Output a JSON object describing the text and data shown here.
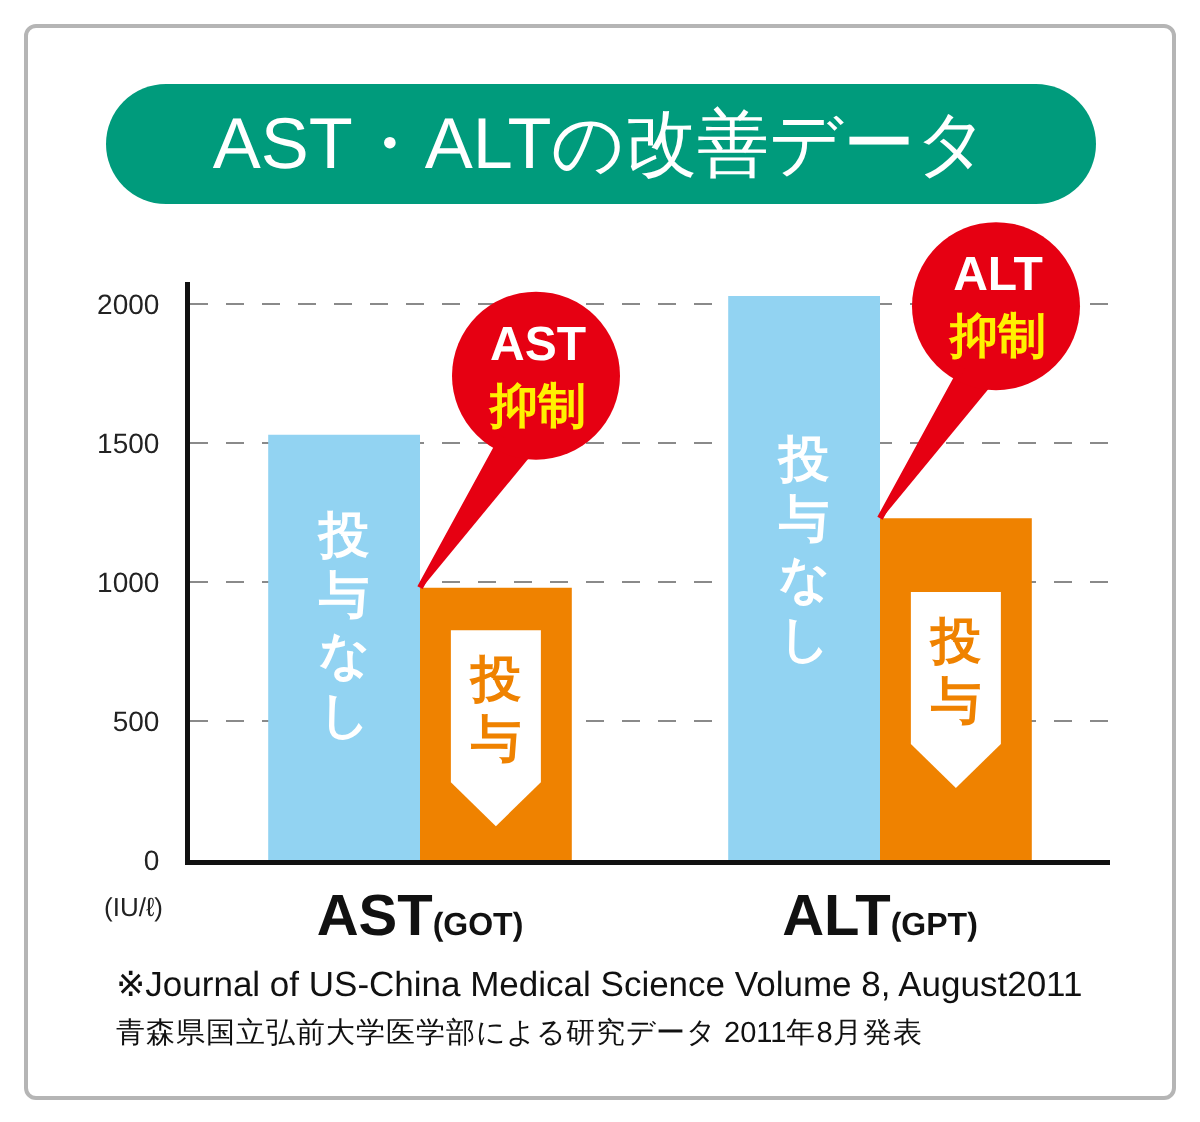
{
  "chart_data": {
    "type": "bar",
    "title": "AST・ALTの改善データ",
    "ylabel": "(IU/ℓ)",
    "categories": [
      "AST(GOT)",
      "ALT(GPT)"
    ],
    "series": [
      {
        "name": "投与なし",
        "color": "#92d3f2",
        "values": [
          1530,
          2030
        ]
      },
      {
        "name": "投与",
        "color": "#ef8200",
        "values": [
          980,
          1230
        ]
      }
    ],
    "ylim": [
      0,
      2080
    ],
    "yticks": [
      0,
      500,
      1000,
      1500,
      2000
    ],
    "grid": "y",
    "annotations": [
      {
        "text": "AST\n抑制",
        "x": "AST(GOT)",
        "y": 980
      },
      {
        "text": "ALT\n抑制",
        "x": "ALT(GPT)",
        "y": 1230
      },
      "※Journal of US-China Medical Science Volume 8, August2011",
      "青森県国立弘前大学医学部による研究データ 2011年8月発表"
    ]
  }
}
